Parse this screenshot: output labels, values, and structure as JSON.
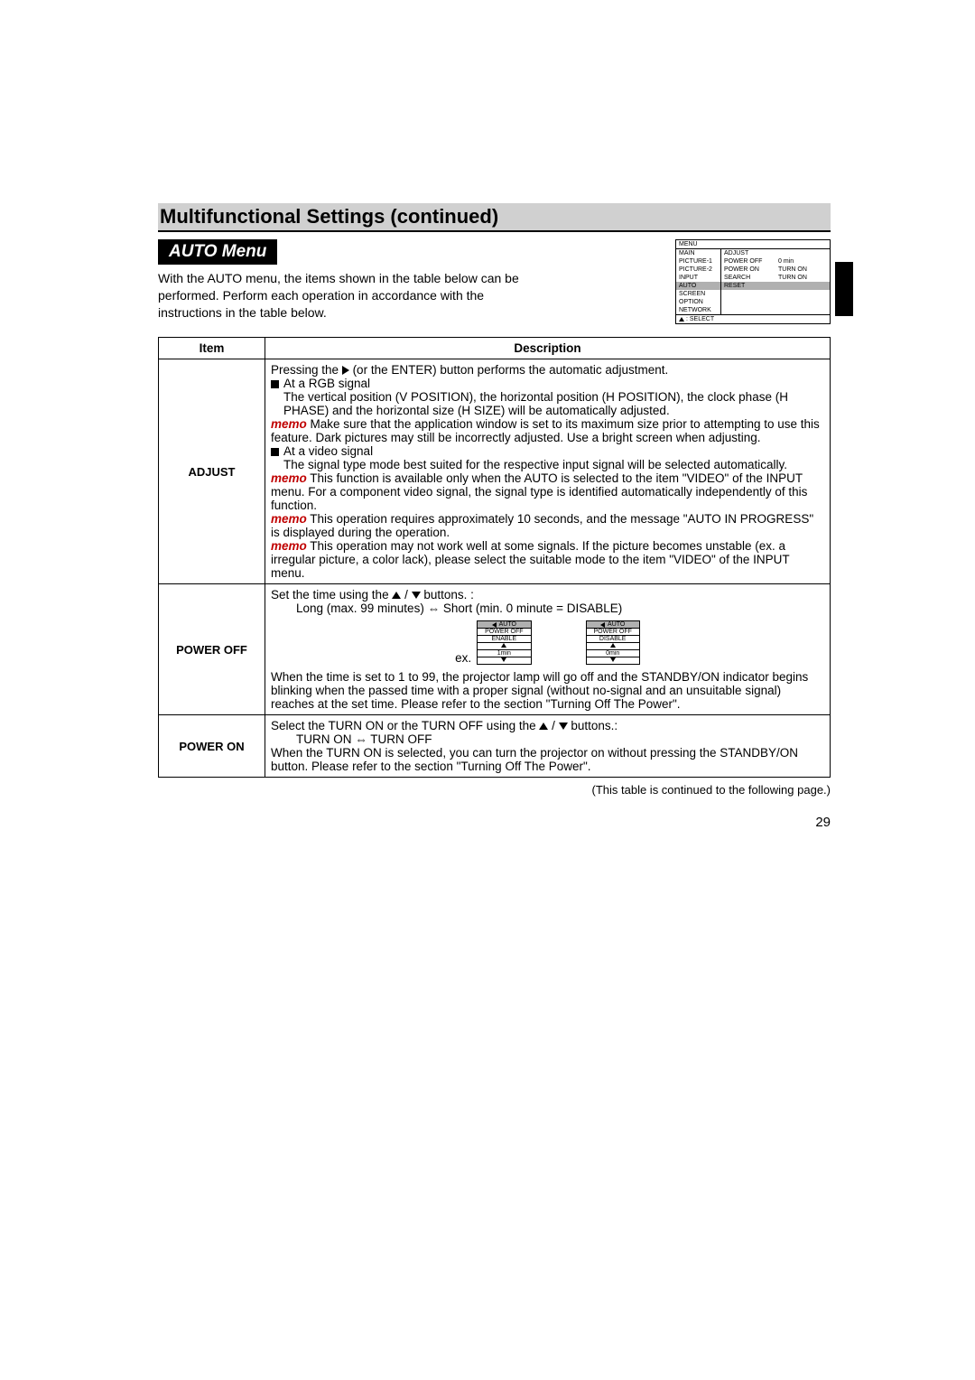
{
  "title": "Multifunctional Settings (continued)",
  "subheading": "AUTO Menu",
  "intro": "With the AUTO menu, the items shown in the table below can be performed. Perform each operation in accordance with the instructions in the table below.",
  "osd": {
    "menu_label": "MENU",
    "select_label": ": SELECT",
    "left": [
      "MAIN",
      "PICTURE-1",
      "PICTURE-2",
      "INPUT",
      "AUTO",
      "SCREEN",
      "OPTION",
      "NETWORK"
    ],
    "mid": [
      "ADJUST",
      "POWER OFF",
      "POWER ON",
      "SEARCH",
      "RESET",
      "",
      "",
      ""
    ],
    "right": [
      "",
      "0 min",
      "TURN ON",
      "TURN ON",
      "",
      "",
      "",
      ""
    ]
  },
  "table": {
    "head_item": "Item",
    "head_desc": "Description",
    "rows": {
      "adjust": {
        "item": "ADJUST",
        "l1a": "Pressing the ",
        "l1b": " (or the ENTER) button performs the automatic adjustment.",
        "bul1": " At a RGB signal",
        "p1": "The vertical position (V POSITION), the horizontal position (H POSITION), the clock phase (H PHASE) and the horizontal size (H SIZE) will be automatically adjusted.",
        "memo1": "memo",
        "m1": " Make sure that the application window is set to its maximum size prior to attempting to use this feature. Dark pictures may still be incorrectly adjusted. Use a bright screen when adjusting.",
        "bul2": " At a video signal",
        "p2": "The signal type mode best suited for the respective input signal will be selected automatically.",
        "memo2": "memo",
        "m2": " This function is available only when the AUTO is selected to the item \"VIDEO\" of the INPUT menu. For a component video signal, the signal type is identified automatically independently of this function.",
        "memo3": "memo",
        "m3": " This operation requires approximately 10 seconds, and the message \"AUTO IN PROGRESS\" is displayed during the operation.",
        "memo4": "memo",
        "m4": " This operation may not work well at some signals. If the picture becomes unstable (ex. a irregular picture, a color lack), please select the suitable mode to the item \"VIDEO\" of the INPUT menu."
      },
      "poweroff": {
        "item": "POWER OFF",
        "l1a": "Set the time using the ",
        "l1b": " buttons. :",
        "l2": "Long (max. 99 minutes) ⇔ Short (min. 0 minute = DISABLE)",
        "ex_label": "ex.",
        "mini1": {
          "title": "AUTO",
          "r1": "POWER OFF",
          "r2": "ENABLE",
          "r3": "1min"
        },
        "mini2": {
          "title": "AUTO",
          "r1": "POWER OFF",
          "r2": "DISABLE",
          "r3": "0min"
        },
        "p1": "When the time is set to 1 to 99, the projector lamp will go off and the STANDBY/ON indicator begins blinking when the passed time with a proper signal (without no-signal and an unsuitable signal) reaches at the set time. Please refer to the section \"Turning Off The Power\"."
      },
      "poweron": {
        "item": "POWER ON",
        "l1a": "Select the TURN ON or the TURN OFF using the ",
        "l1b": " buttons.:",
        "l2": "TURN ON ⇔ TURN OFF",
        "p1": "When the TURN ON is selected, you can turn the projector on without pressing the STANDBY/ON button. Please refer to the section \"Turning Off The Power\"."
      }
    }
  },
  "footer_note": "(This table is continued to the following page.)",
  "page_number": "29"
}
